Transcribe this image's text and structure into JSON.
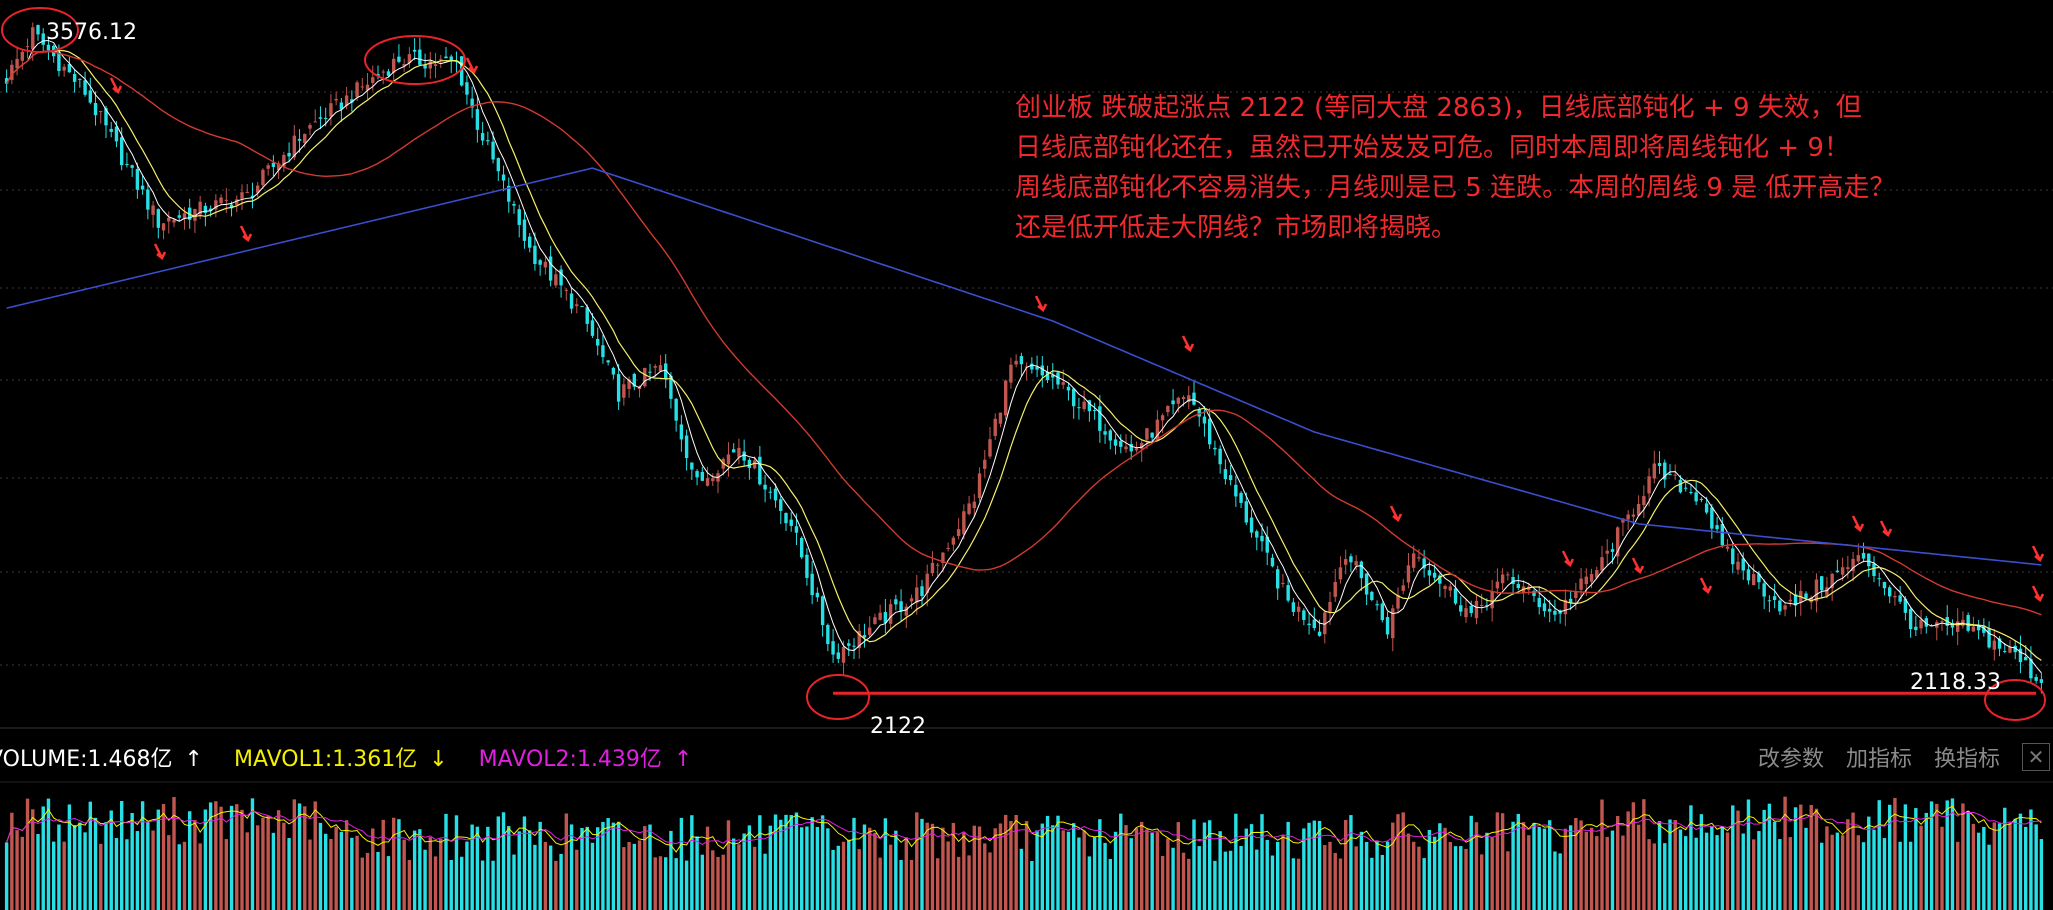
{
  "chart_data": {
    "type": "candlestick",
    "bars": 390,
    "price_ylim": [
      2080,
      3600
    ],
    "grid": "horizontal-dotted",
    "price_path": [
      [
        0,
        3475
      ],
      [
        5,
        3576
      ],
      [
        15,
        3444
      ],
      [
        29,
        3152
      ],
      [
        46,
        3210
      ],
      [
        57,
        3356
      ],
      [
        75,
        3518
      ],
      [
        86,
        3507
      ],
      [
        90,
        3372
      ],
      [
        100,
        3091
      ],
      [
        110,
        2946
      ],
      [
        117,
        2768
      ],
      [
        125,
        2827
      ],
      [
        132,
        2564
      ],
      [
        140,
        2652
      ],
      [
        150,
        2475
      ],
      [
        158,
        2181
      ],
      [
        165,
        2241
      ],
      [
        175,
        2329
      ],
      [
        185,
        2535
      ],
      [
        192,
        2827
      ],
      [
        200,
        2798
      ],
      [
        215,
        2636
      ],
      [
        226,
        2768
      ],
      [
        235,
        2535
      ],
      [
        245,
        2300
      ],
      [
        251,
        2241
      ],
      [
        256,
        2416
      ],
      [
        264,
        2241
      ],
      [
        269,
        2416
      ],
      [
        280,
        2270
      ],
      [
        287,
        2358
      ],
      [
        296,
        2270
      ],
      [
        305,
        2387
      ],
      [
        315,
        2594
      ],
      [
        324,
        2535
      ],
      [
        328,
        2416
      ],
      [
        340,
        2284
      ],
      [
        355,
        2402
      ],
      [
        365,
        2241
      ],
      [
        375,
        2241
      ],
      [
        384,
        2181
      ],
      [
        389,
        2118
      ]
    ],
    "long_ma_path": [
      [
        0,
        2959
      ],
      [
        112,
        3273
      ],
      [
        200,
        2930
      ],
      [
        250,
        2681
      ],
      [
        312,
        2475
      ],
      [
        389,
        2383
      ]
    ],
    "high_label": "3576.12",
    "low_label": "2118.33",
    "support_label": "2122",
    "support_level": 2122,
    "colors": {
      "up": "#c0564f",
      "down": "#27e0e6",
      "ma_short": "#f4f06a",
      "ma_fast": "#ffffff",
      "ma_mid": "#d03a30",
      "ma_long": "#3a4fd0",
      "annotation": "#e8242a"
    }
  },
  "annotation": {
    "lines": [
      "创业板 跌破起涨点 2122 (等同大盘 2863)，日线底部钝化 + 9 失效，但",
      "日线底部钝化还在，虽然已开始岌岌可危。同时本周即将周线钝化 + 9！",
      "周线底部钝化不容易消失，月线则是已 5 连跌。本周的周线 9 是 低开高走？",
      "还是低开低走大阴线？市场即将揭晓。"
    ]
  },
  "volume_panel": {
    "volume": {
      "label": "VOLUME:1.468亿",
      "arrow": "↑",
      "color": "#ffffff"
    },
    "mavol1": {
      "label": "MAVOL1:1.361亿",
      "arrow": "↓",
      "color": "#f4f000"
    },
    "mavol2": {
      "label": "MAVOL2:1.439亿",
      "arrow": "↑",
      "color": "#e020e0"
    }
  },
  "toolbar": {
    "edit_params": "改参数",
    "add_indicator": "加指标",
    "switch_indicator": "换指标",
    "close": "✕"
  }
}
